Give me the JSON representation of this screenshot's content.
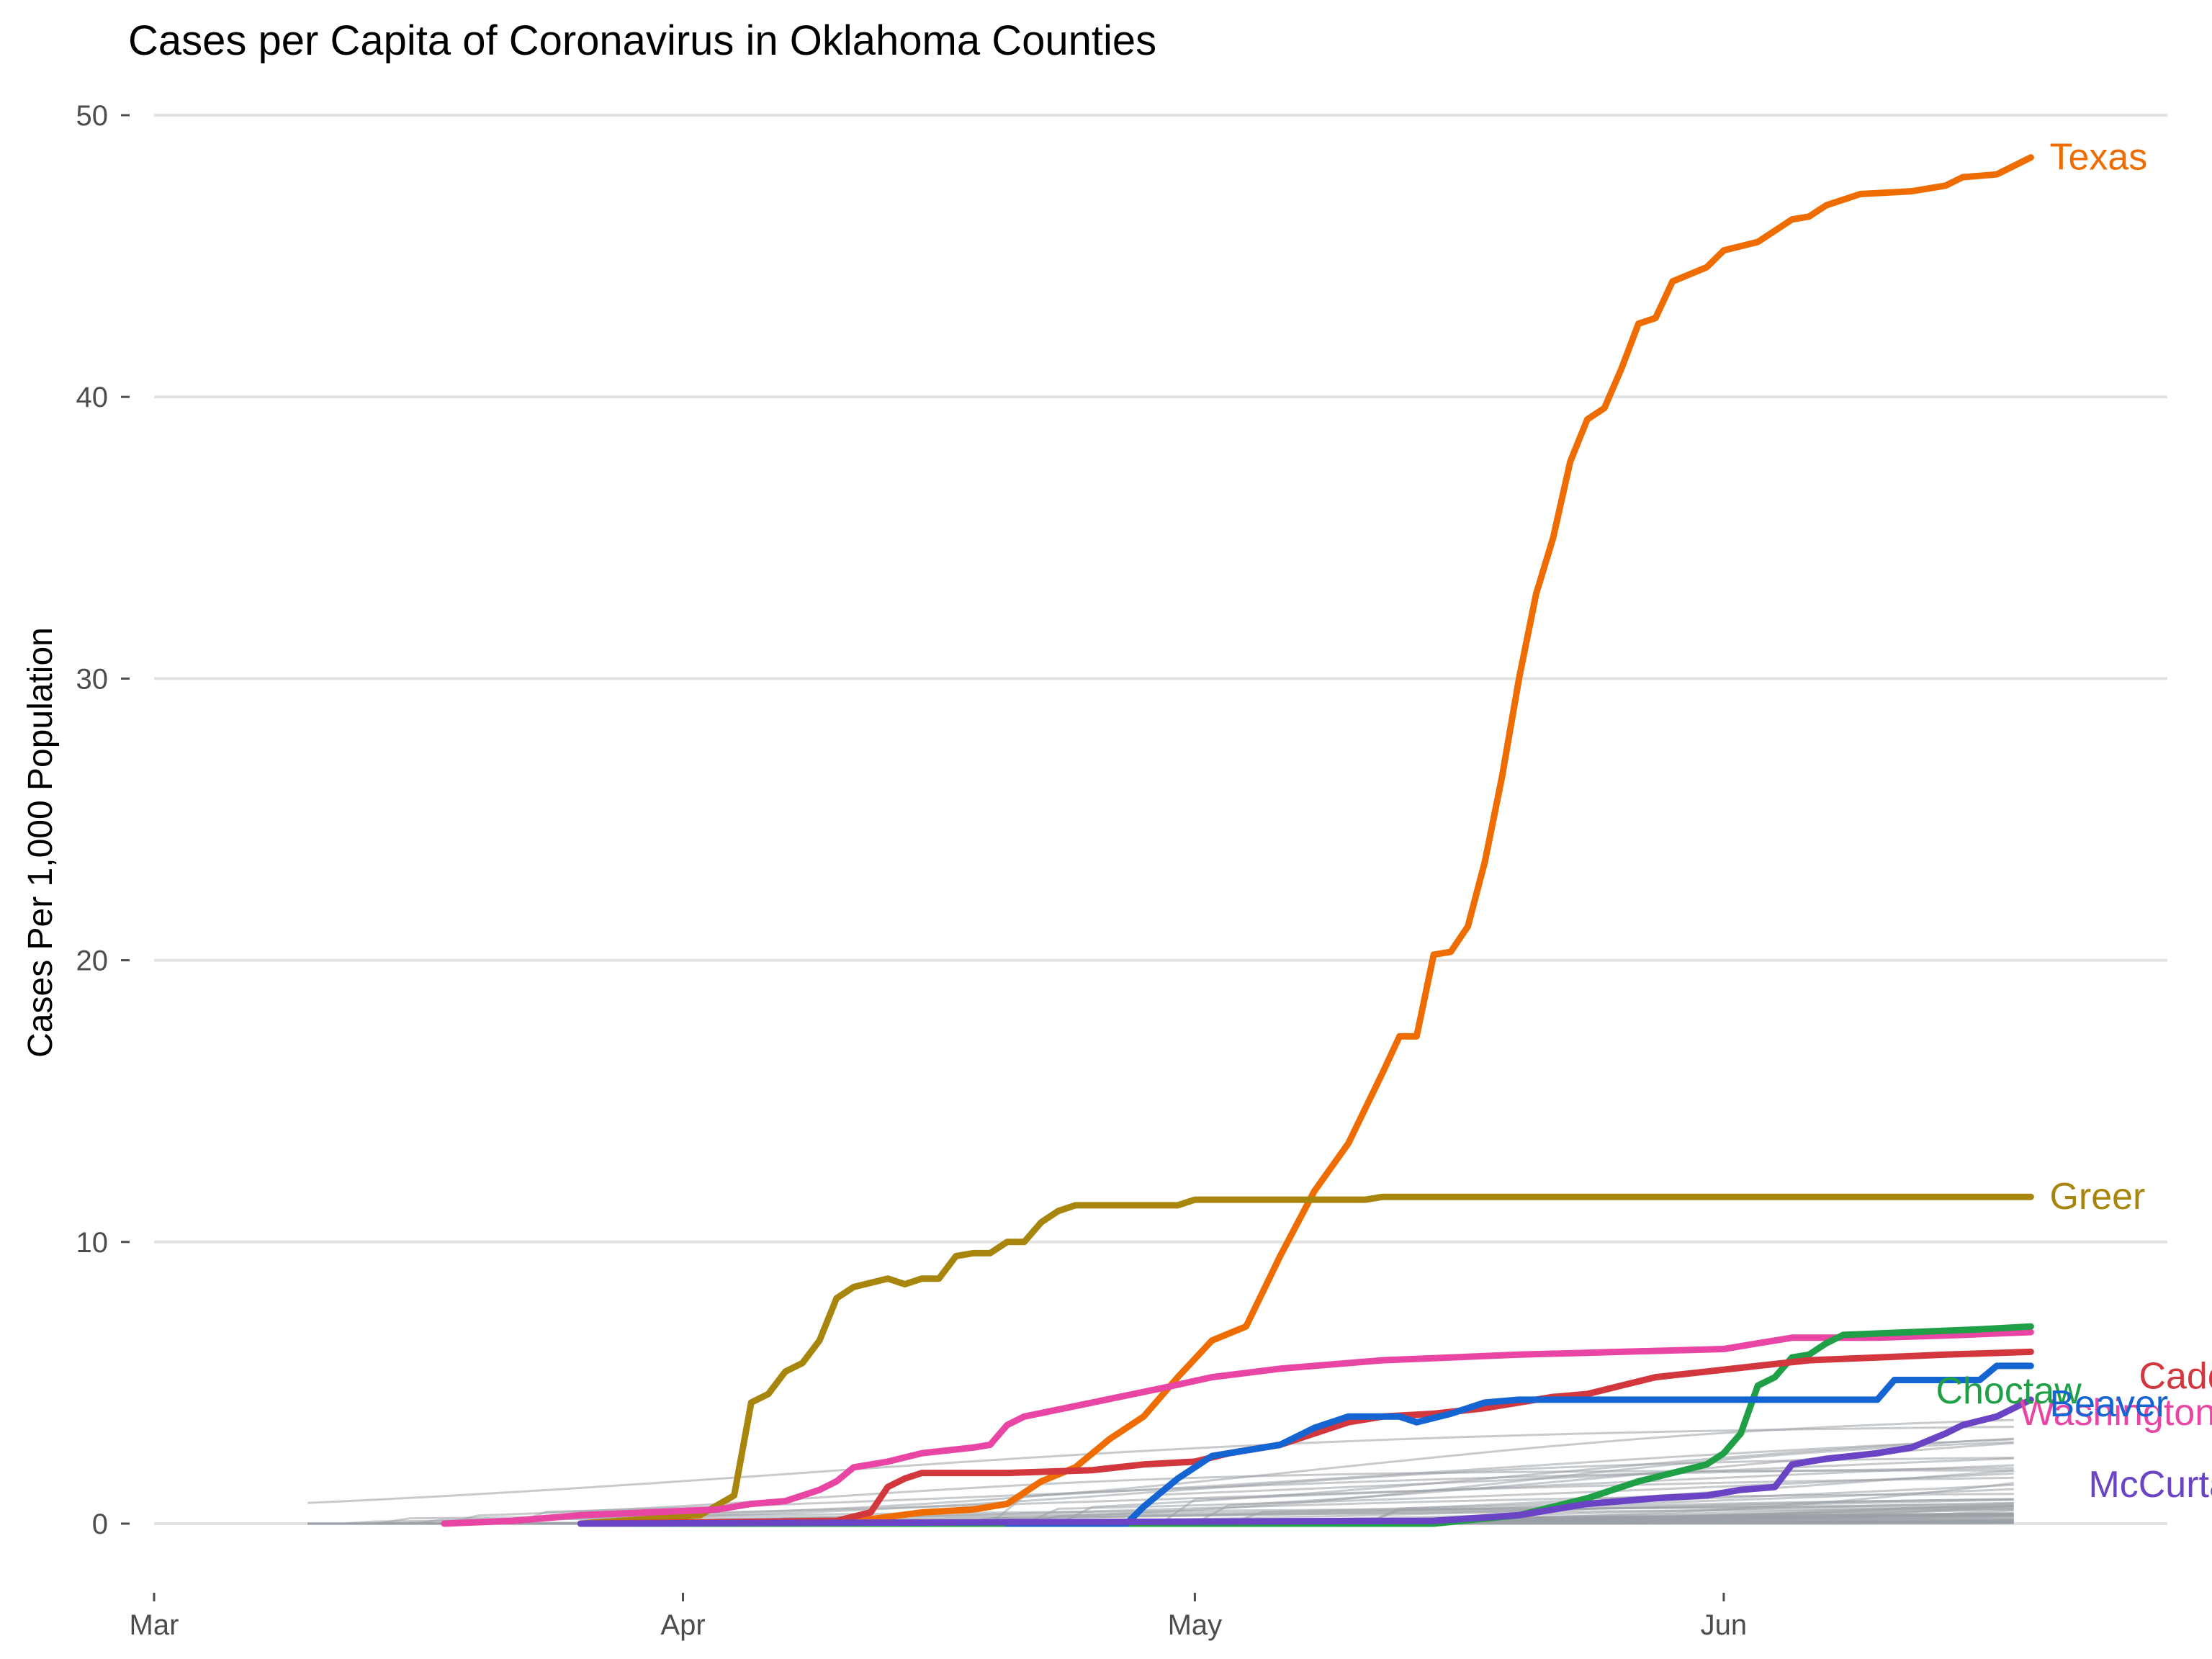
{
  "chart_data": {
    "type": "line",
    "title": "Cases per Capita of Coronavirus in Oklahoma Counties",
    "xlabel": "",
    "ylabel": "Cases Per 1,000 Population",
    "x_ticks": [
      "Mar",
      "Apr",
      "May",
      "Jun"
    ],
    "x_tick_dates": [
      "2020-03-01",
      "2020-04-01",
      "2020-05-01",
      "2020-06-01"
    ],
    "xlim": [
      "2020-03-01",
      "2020-06-27"
    ],
    "ylim": [
      0,
      50
    ],
    "y_ticks": [
      0,
      10,
      20,
      30,
      40,
      50
    ],
    "grid": true,
    "legend": "none",
    "highlighted_series": [
      {
        "name": "Texas",
        "color": "#EF6C00",
        "points": [
          [
            "2020-03-30",
            0
          ],
          [
            "2020-04-10",
            0
          ],
          [
            "2020-04-15",
            0.4
          ],
          [
            "2020-04-18",
            0.5
          ],
          [
            "2020-04-20",
            0.7
          ],
          [
            "2020-04-22",
            1.5
          ],
          [
            "2020-04-24",
            2.0
          ],
          [
            "2020-04-26",
            3.0
          ],
          [
            "2020-04-28",
            3.8
          ],
          [
            "2020-04-30",
            5.2
          ],
          [
            "2020-05-02",
            6.5
          ],
          [
            "2020-05-04",
            7.0
          ],
          [
            "2020-05-06",
            9.5
          ],
          [
            "2020-05-08",
            11.8
          ],
          [
            "2020-05-10",
            13.5
          ],
          [
            "2020-05-12",
            16.0
          ],
          [
            "2020-05-13",
            17.3
          ],
          [
            "2020-05-14",
            17.3
          ],
          [
            "2020-05-15",
            20.2
          ],
          [
            "2020-05-16",
            20.3
          ],
          [
            "2020-05-17",
            21.2
          ],
          [
            "2020-05-18",
            23.5
          ],
          [
            "2020-05-19",
            26.5
          ],
          [
            "2020-05-20",
            30.0
          ],
          [
            "2020-05-21",
            33.0
          ],
          [
            "2020-05-22",
            35.0
          ],
          [
            "2020-05-23",
            37.7
          ],
          [
            "2020-05-24",
            39.2
          ],
          [
            "2020-05-25",
            39.6
          ],
          [
            "2020-05-26",
            41.0
          ],
          [
            "2020-05-27",
            42.6
          ],
          [
            "2020-05-28",
            42.8
          ],
          [
            "2020-05-29",
            44.1
          ],
          [
            "2020-05-31",
            44.6
          ],
          [
            "2020-06-01",
            45.2
          ],
          [
            "2020-06-03",
            45.5
          ],
          [
            "2020-06-05",
            46.3
          ],
          [
            "2020-06-06",
            46.4
          ],
          [
            "2020-06-07",
            46.8
          ],
          [
            "2020-06-09",
            47.2
          ],
          [
            "2020-06-12",
            47.3
          ],
          [
            "2020-06-14",
            47.5
          ],
          [
            "2020-06-15",
            47.8
          ],
          [
            "2020-06-17",
            47.9
          ],
          [
            "2020-06-19",
            48.5
          ]
        ]
      },
      {
        "name": "Greer",
        "color": "#A8860E",
        "points": [
          [
            "2020-03-26",
            0
          ],
          [
            "2020-04-02",
            0.3
          ],
          [
            "2020-04-04",
            1.0
          ],
          [
            "2020-04-05",
            4.3
          ],
          [
            "2020-04-06",
            4.6
          ],
          [
            "2020-04-07",
            5.4
          ],
          [
            "2020-04-08",
            5.7
          ],
          [
            "2020-04-09",
            6.5
          ],
          [
            "2020-04-10",
            8.0
          ],
          [
            "2020-04-11",
            8.4
          ],
          [
            "2020-04-13",
            8.7
          ],
          [
            "2020-04-14",
            8.5
          ],
          [
            "2020-04-15",
            8.7
          ],
          [
            "2020-04-16",
            8.7
          ],
          [
            "2020-04-17",
            9.5
          ],
          [
            "2020-04-18",
            9.6
          ],
          [
            "2020-04-19",
            9.6
          ],
          [
            "2020-04-20",
            10.0
          ],
          [
            "2020-04-21",
            10.0
          ],
          [
            "2020-04-22",
            10.7
          ],
          [
            "2020-04-23",
            11.1
          ],
          [
            "2020-04-24",
            11.3
          ],
          [
            "2020-04-30",
            11.3
          ],
          [
            "2020-05-01",
            11.5
          ],
          [
            "2020-05-11",
            11.5
          ],
          [
            "2020-05-12",
            11.6
          ],
          [
            "2020-06-19",
            11.6
          ]
        ]
      },
      {
        "name": "Washington",
        "color": "#E845A4",
        "points": [
          [
            "2020-03-18",
            0
          ],
          [
            "2020-03-22",
            0.1
          ],
          [
            "2020-03-26",
            0.3
          ],
          [
            "2020-03-30",
            0.4
          ],
          [
            "2020-04-03",
            0.5
          ],
          [
            "2020-04-05",
            0.7
          ],
          [
            "2020-04-07",
            0.8
          ],
          [
            "2020-04-09",
            1.2
          ],
          [
            "2020-04-10",
            1.5
          ],
          [
            "2020-04-11",
            2.0
          ],
          [
            "2020-04-13",
            2.2
          ],
          [
            "2020-04-15",
            2.5
          ],
          [
            "2020-04-18",
            2.7
          ],
          [
            "2020-04-19",
            2.8
          ],
          [
            "2020-04-20",
            3.5
          ],
          [
            "2020-04-21",
            3.8
          ],
          [
            "2020-04-25",
            4.3
          ],
          [
            "2020-04-29",
            4.8
          ],
          [
            "2020-05-02",
            5.2
          ],
          [
            "2020-05-06",
            5.5
          ],
          [
            "2020-05-10",
            5.7
          ],
          [
            "2020-05-12",
            5.8
          ],
          [
            "2020-05-16",
            5.9
          ],
          [
            "2020-05-20",
            6.0
          ],
          [
            "2020-05-26",
            6.1
          ],
          [
            "2020-06-01",
            6.2
          ],
          [
            "2020-06-03",
            6.4
          ],
          [
            "2020-06-05",
            6.6
          ],
          [
            "2020-06-10",
            6.6
          ],
          [
            "2020-06-15",
            6.7
          ],
          [
            "2020-06-19",
            6.8
          ]
        ]
      },
      {
        "name": "Choctaw",
        "color": "#1FA046",
        "points": [
          [
            "2020-03-26",
            0
          ],
          [
            "2020-05-15",
            0
          ],
          [
            "2020-05-20",
            0.3
          ],
          [
            "2020-05-24",
            0.9
          ],
          [
            "2020-05-27",
            1.5
          ],
          [
            "2020-05-29",
            1.8
          ],
          [
            "2020-05-31",
            2.1
          ],
          [
            "2020-06-01",
            2.5
          ],
          [
            "2020-06-02",
            3.2
          ],
          [
            "2020-06-03",
            4.9
          ],
          [
            "2020-06-04",
            5.2
          ],
          [
            "2020-06-05",
            5.9
          ],
          [
            "2020-06-06",
            6.0
          ],
          [
            "2020-06-07",
            6.4
          ],
          [
            "2020-06-08",
            6.7
          ],
          [
            "2020-06-12",
            6.8
          ],
          [
            "2020-06-16",
            6.9
          ],
          [
            "2020-06-19",
            7.0
          ]
        ]
      },
      {
        "name": "Caddo",
        "color": "#D2373E",
        "points": [
          [
            "2020-03-26",
            0
          ],
          [
            "2020-04-10",
            0.1
          ],
          [
            "2020-04-12",
            0.4
          ],
          [
            "2020-04-13",
            1.3
          ],
          [
            "2020-04-14",
            1.6
          ],
          [
            "2020-04-15",
            1.8
          ],
          [
            "2020-04-20",
            1.8
          ],
          [
            "2020-04-25",
            1.9
          ],
          [
            "2020-04-28",
            2.1
          ],
          [
            "2020-05-01",
            2.2
          ],
          [
            "2020-05-03",
            2.5
          ],
          [
            "2020-05-06",
            2.8
          ],
          [
            "2020-05-08",
            3.2
          ],
          [
            "2020-05-10",
            3.6
          ],
          [
            "2020-05-12",
            3.8
          ],
          [
            "2020-05-15",
            3.9
          ],
          [
            "2020-05-18",
            4.1
          ],
          [
            "2020-05-20",
            4.3
          ],
          [
            "2020-05-22",
            4.5
          ],
          [
            "2020-05-24",
            4.6
          ],
          [
            "2020-05-26",
            4.9
          ],
          [
            "2020-05-28",
            5.2
          ],
          [
            "2020-05-31",
            5.4
          ],
          [
            "2020-06-03",
            5.6
          ],
          [
            "2020-06-06",
            5.8
          ],
          [
            "2020-06-10",
            5.9
          ],
          [
            "2020-06-14",
            6.0
          ],
          [
            "2020-06-19",
            6.1
          ]
        ]
      },
      {
        "name": "Beaver",
        "color": "#1464D2",
        "points": [
          [
            "2020-04-20",
            0
          ],
          [
            "2020-04-27",
            0
          ],
          [
            "2020-04-28",
            0.6
          ],
          [
            "2020-04-30",
            1.6
          ],
          [
            "2020-05-02",
            2.4
          ],
          [
            "2020-05-04",
            2.6
          ],
          [
            "2020-05-06",
            2.8
          ],
          [
            "2020-05-08",
            3.4
          ],
          [
            "2020-05-10",
            3.8
          ],
          [
            "2020-05-13",
            3.8
          ],
          [
            "2020-05-14",
            3.6
          ],
          [
            "2020-05-16",
            3.9
          ],
          [
            "2020-05-18",
            4.3
          ],
          [
            "2020-05-20",
            4.4
          ],
          [
            "2020-06-10",
            4.4
          ],
          [
            "2020-06-11",
            5.1
          ],
          [
            "2020-06-16",
            5.1
          ],
          [
            "2020-06-17",
            5.6
          ],
          [
            "2020-06-19",
            5.6
          ]
        ]
      },
      {
        "name": "McCurtain",
        "color": "#6A44C4",
        "points": [
          [
            "2020-03-26",
            0
          ],
          [
            "2020-05-15",
            0.1
          ],
          [
            "2020-05-20",
            0.3
          ],
          [
            "2020-05-24",
            0.7
          ],
          [
            "2020-05-28",
            0.9
          ],
          [
            "2020-05-31",
            1.0
          ],
          [
            "2020-06-02",
            1.2
          ],
          [
            "2020-06-04",
            1.3
          ],
          [
            "2020-06-05",
            2.1
          ],
          [
            "2020-06-07",
            2.3
          ],
          [
            "2020-06-10",
            2.5
          ],
          [
            "2020-06-12",
            2.7
          ],
          [
            "2020-06-14",
            3.2
          ],
          [
            "2020-06-15",
            3.5
          ],
          [
            "2020-06-17",
            3.8
          ],
          [
            "2020-06-19",
            4.4
          ]
        ]
      }
    ],
    "background_series_color": "#9AA0A6"
  }
}
